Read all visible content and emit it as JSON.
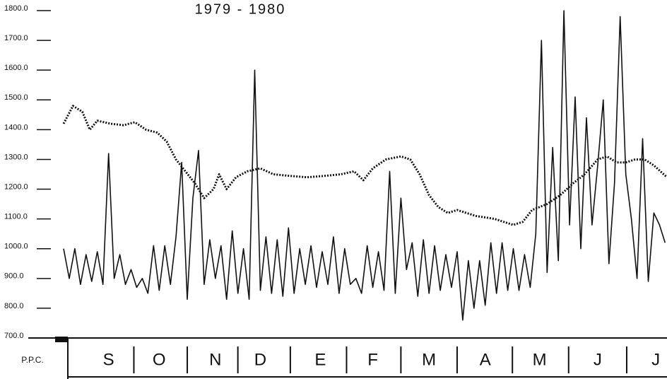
{
  "chart_data": {
    "type": "line",
    "title": "1979 - 1980",
    "y_axis_label": "P.P.C.",
    "xlim": [
      0,
      322
    ],
    "ylim": [
      700,
      1800
    ],
    "yticks": [
      {
        "value": 1800,
        "label": "1800.0"
      },
      {
        "value": 1700,
        "label": "1700.0"
      },
      {
        "value": 1600,
        "label": "1600.0"
      },
      {
        "value": 1500,
        "label": "1500.0"
      },
      {
        "value": 1400,
        "label": "1400.0"
      },
      {
        "value": 1300,
        "label": "1300.0"
      },
      {
        "value": 1200,
        "label": "1200.0"
      },
      {
        "value": 1100,
        "label": "1100.0"
      },
      {
        "value": 1000,
        "label": "1000.0"
      },
      {
        "value": 900,
        "label": "900.0"
      },
      {
        "value": 800,
        "label": "800.0"
      },
      {
        "value": 700,
        "label": "700.0"
      }
    ],
    "xticks": [
      {
        "value": 24,
        "label": "S"
      },
      {
        "value": 51,
        "label": "O"
      },
      {
        "value": 81,
        "label": "N"
      },
      {
        "value": 105,
        "label": "D"
      },
      {
        "value": 137,
        "label": "E"
      },
      {
        "value": 165,
        "label": "F"
      },
      {
        "value": 195,
        "label": "M"
      },
      {
        "value": 225,
        "label": "A"
      },
      {
        "value": 254,
        "label": "M"
      },
      {
        "value": 285,
        "label": "J"
      },
      {
        "value": 316,
        "label": "J"
      }
    ],
    "series": [
      {
        "color": "#111111",
        "style": "dotted",
        "x": [
          0,
          5,
          10,
          14,
          18,
          25,
          32,
          38,
          44,
          50,
          55,
          60,
          65,
          70,
          75,
          80,
          83,
          87,
          92,
          98,
          105,
          112,
          120,
          130,
          140,
          148,
          155,
          160,
          165,
          172,
          180,
          185,
          190,
          195,
          200,
          205,
          210,
          220,
          230,
          240,
          245,
          250,
          258,
          265,
          272,
          278,
          285,
          290,
          295,
          300,
          305,
          310,
          315,
          322
        ],
        "values": [
          1420,
          1480,
          1460,
          1400,
          1430,
          1420,
          1415,
          1425,
          1400,
          1390,
          1360,
          1300,
          1260,
          1220,
          1170,
          1200,
          1250,
          1200,
          1240,
          1260,
          1270,
          1250,
          1245,
          1240,
          1245,
          1250,
          1260,
          1230,
          1270,
          1300,
          1310,
          1300,
          1250,
          1180,
          1140,
          1120,
          1130,
          1110,
          1100,
          1080,
          1090,
          1130,
          1150,
          1180,
          1220,
          1250,
          1300,
          1310,
          1290,
          1290,
          1300,
          1300,
          1280,
          1240
        ]
      },
      {
        "color": "#111111",
        "style": "solid",
        "x": [
          0,
          3,
          6,
          9,
          12,
          15,
          18,
          21,
          24,
          27,
          30,
          33,
          36,
          39,
          42,
          45,
          48,
          51,
          54,
          57,
          60,
          63,
          66,
          69,
          72,
          75,
          78,
          81,
          84,
          87,
          90,
          93,
          96,
          99,
          102,
          105,
          108,
          111,
          114,
          117,
          120,
          123,
          126,
          129,
          132,
          135,
          138,
          141,
          144,
          147,
          150,
          153,
          156,
          159,
          162,
          165,
          168,
          171,
          174,
          177,
          180,
          183,
          186,
          189,
          192,
          195,
          198,
          201,
          204,
          207,
          210,
          213,
          216,
          219,
          222,
          225,
          228,
          231,
          234,
          237,
          240,
          243,
          246,
          249,
          252,
          255,
          258,
          261,
          264,
          267,
          270,
          273,
          276,
          279,
          282,
          285,
          288,
          291,
          294,
          297,
          300,
          303,
          306,
          309,
          312,
          315,
          318,
          321
        ],
        "values": [
          1000,
          900,
          1000,
          880,
          980,
          890,
          990,
          880,
          1320,
          900,
          980,
          880,
          930,
          870,
          900,
          850,
          1010,
          860,
          1010,
          880,
          1040,
          1290,
          830,
          1170,
          1330,
          880,
          1030,
          900,
          1010,
          830,
          1060,
          850,
          1000,
          830,
          1600,
          860,
          1040,
          850,
          1030,
          840,
          1070,
          850,
          1000,
          880,
          1010,
          870,
          990,
          880,
          1040,
          850,
          1000,
          880,
          900,
          850,
          1010,
          870,
          990,
          860,
          1260,
          850,
          1170,
          930,
          1020,
          840,
          1030,
          850,
          1010,
          860,
          980,
          870,
          990,
          760,
          960,
          800,
          960,
          810,
          1020,
          850,
          1020,
          860,
          1000,
          860,
          980,
          870,
          1050,
          1700,
          920,
          1340,
          960,
          1800,
          1080,
          1510,
          1000,
          1440,
          1080,
          1280,
          1500,
          950,
          1220,
          1780,
          1250,
          1100,
          900,
          1370,
          890,
          1120,
          1080,
          1020
        ]
      }
    ]
  }
}
